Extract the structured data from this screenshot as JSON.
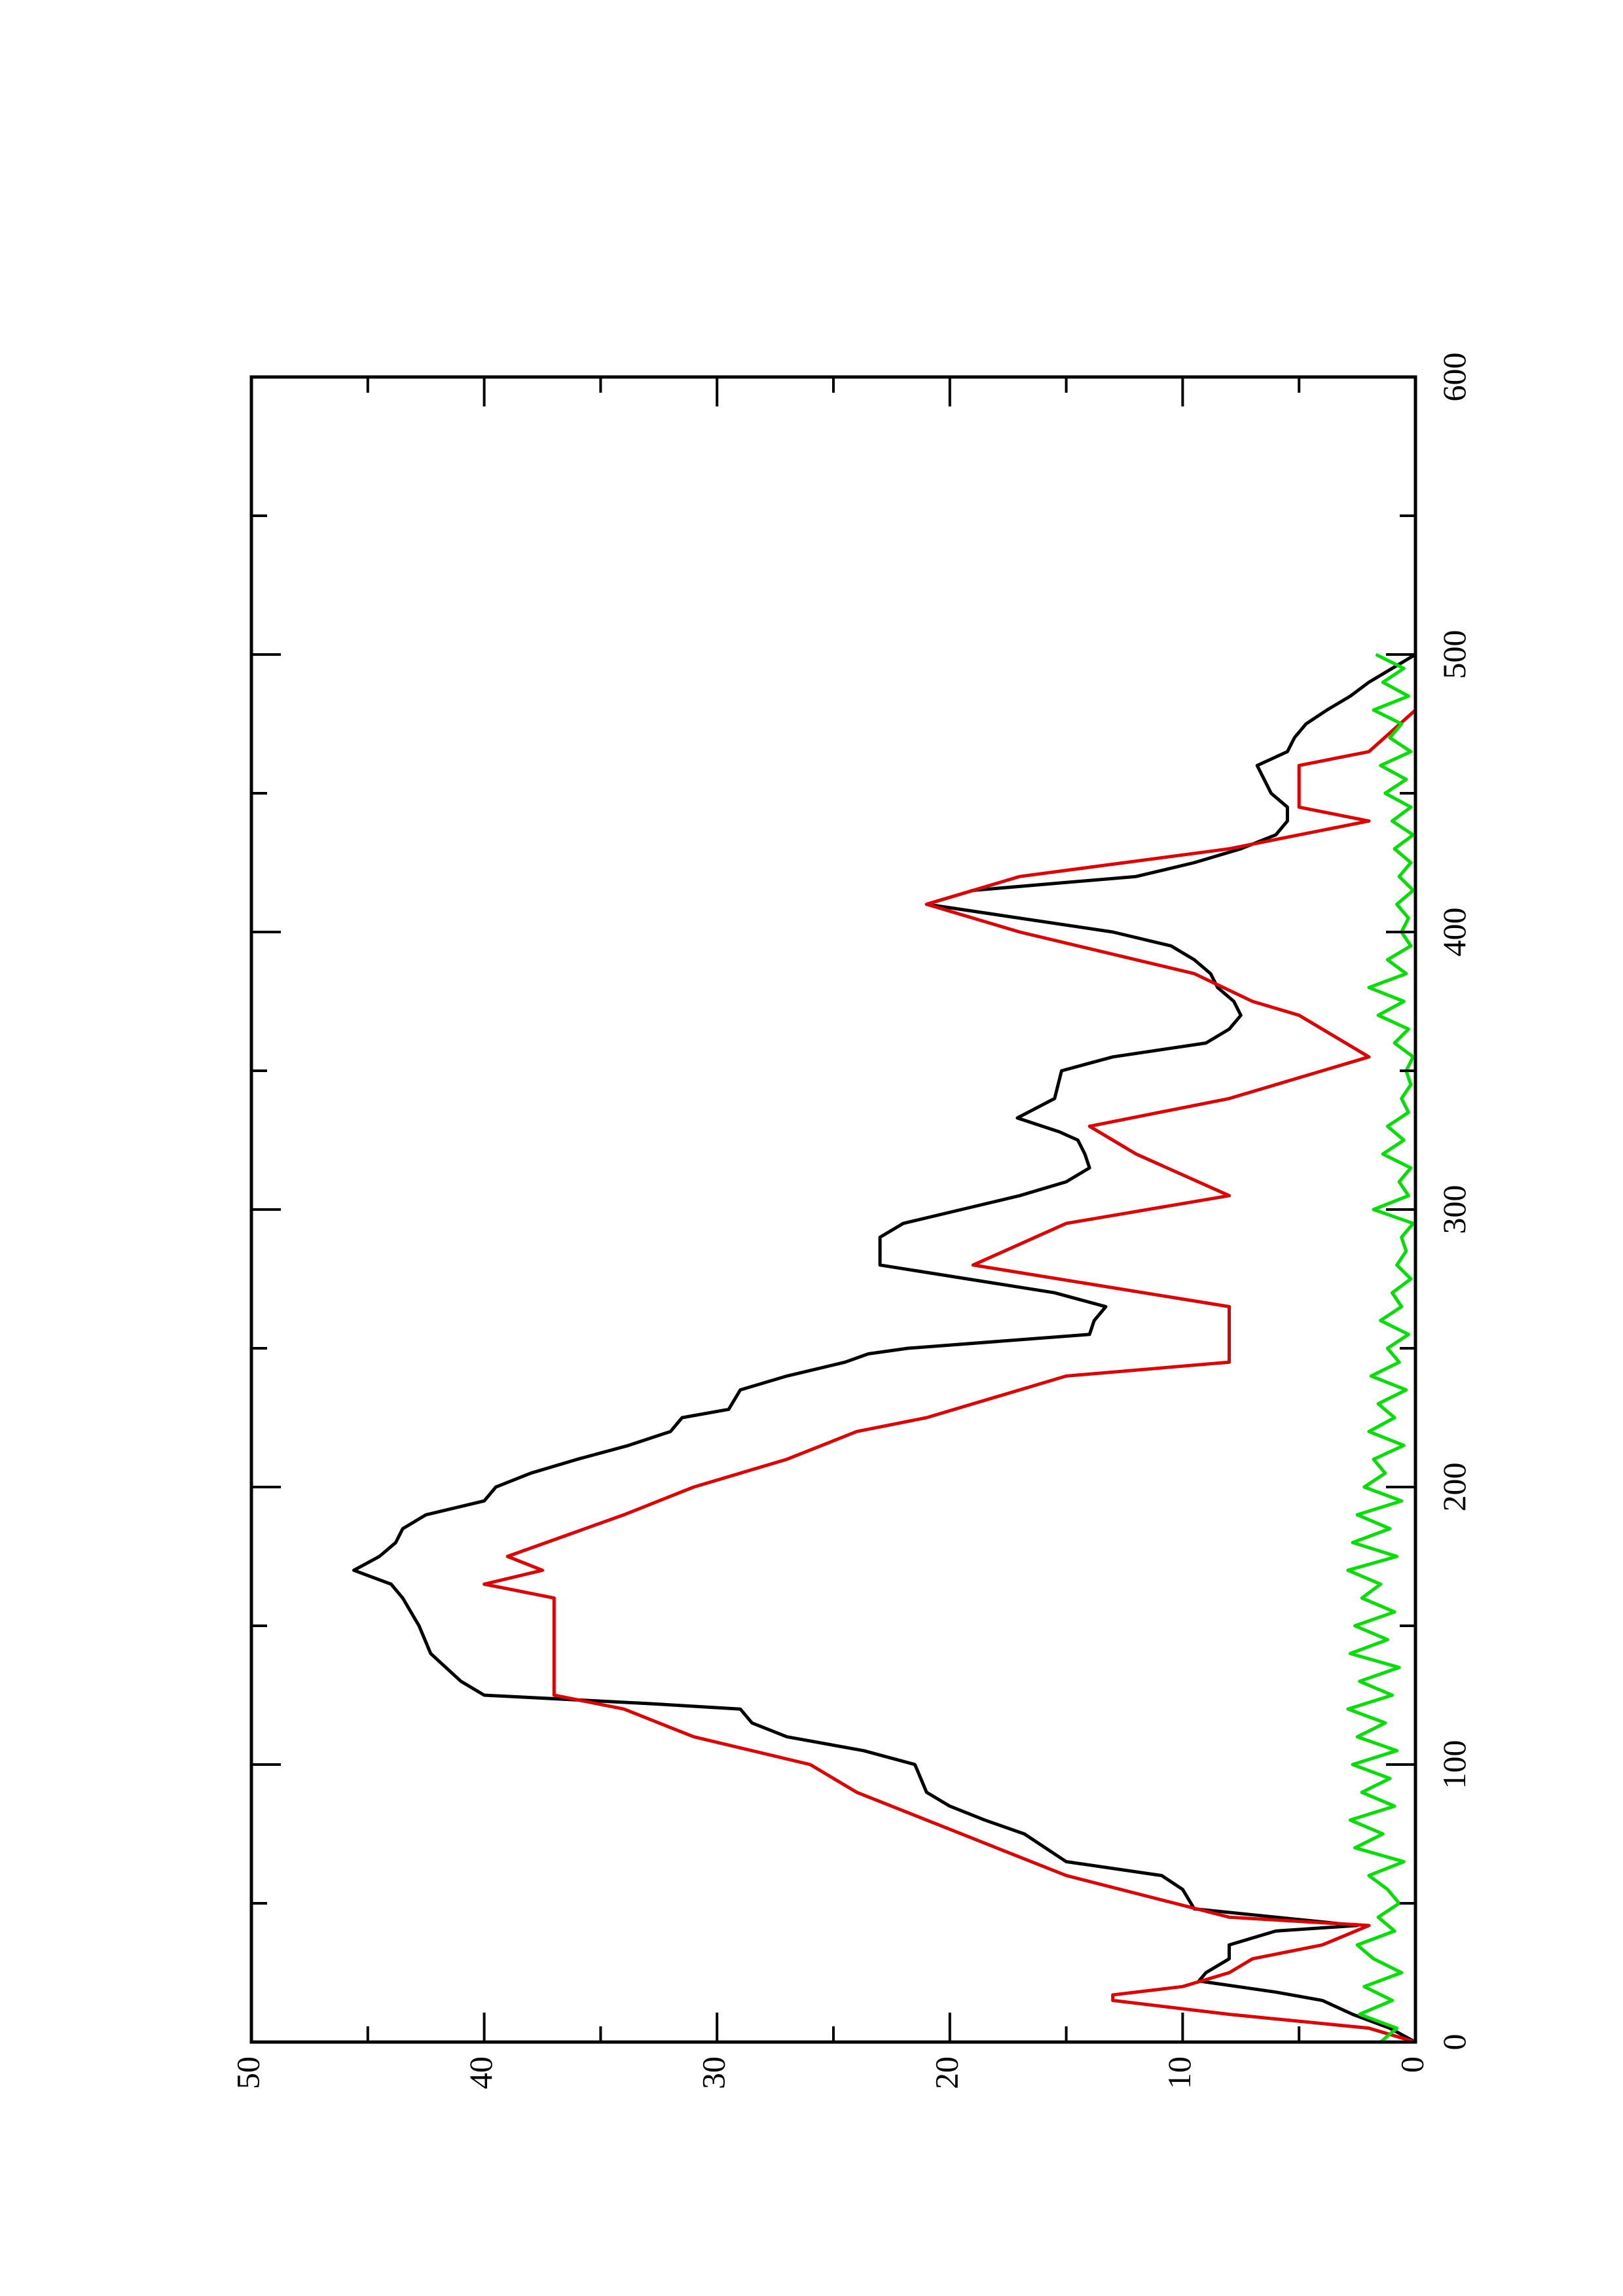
{
  "chart_data": {
    "type": "line",
    "xlim": [
      0,
      600
    ],
    "xticks": [
      0,
      100,
      200,
      300,
      400,
      500,
      600
    ],
    "xminor": [
      50,
      150,
      250,
      350,
      450,
      550
    ],
    "ylim": [
      0,
      50
    ],
    "yticks": [
      0,
      10,
      20,
      30,
      40,
      50
    ],
    "yminor": [
      5,
      15,
      25,
      35,
      45
    ],
    "series": [
      {
        "color": "#000000",
        "x": [
          0,
          5,
          10,
          15,
          18,
          22,
          25,
          30,
          35,
          40,
          42,
          45,
          48,
          55,
          60,
          65,
          75,
          80,
          85,
          90,
          100,
          105,
          110,
          115,
          120,
          122,
          125,
          130,
          140,
          150,
          160,
          165,
          170,
          175,
          180,
          185,
          190,
          195,
          200,
          205,
          210,
          215,
          220,
          225,
          228,
          235,
          240,
          245,
          248,
          250,
          255,
          260,
          265,
          270,
          280,
          290,
          295,
          300,
          305,
          310,
          315,
          320,
          325,
          328,
          333,
          340,
          350,
          355,
          360,
          365,
          370,
          375,
          380,
          385,
          390,
          395,
          400,
          410,
          415,
          420,
          425,
          430,
          435,
          440,
          445,
          450,
          455,
          460,
          465,
          470,
          475,
          480,
          485,
          490,
          495,
          500
        ],
        "values": [
          0,
          1.1,
          2.7,
          4,
          6,
          9.3,
          9,
          8,
          8,
          6,
          2.5,
          6,
          9.5,
          10,
          10.9,
          15,
          16.8,
          18.5,
          20,
          21,
          21.5,
          23.7,
          27,
          28.5,
          29,
          33,
          40,
          41,
          42.3,
          42.8,
          43.5,
          44,
          45.6,
          44.5,
          43.8,
          43.5,
          42.5,
          40,
          39.5,
          38,
          36,
          33.8,
          32,
          31.5,
          29.5,
          29,
          27,
          24.5,
          23.5,
          21.8,
          14,
          13.8,
          13.3,
          15.5,
          23,
          23,
          22,
          19.5,
          17,
          15,
          14,
          14.2,
          14.5,
          15.3,
          17.1,
          15.5,
          15.2,
          13,
          9,
          8,
          7.5,
          7.8,
          8.5,
          8.8,
          9.5,
          10.5,
          13,
          21,
          19,
          12,
          9.5,
          7.5,
          6,
          5.5,
          5.5,
          6.2,
          6.5,
          6.8,
          5.5,
          5.2,
          4.7,
          3.8,
          2.8,
          2,
          1,
          0
        ]
      },
      {
        "color": "#e00000",
        "x": [
          0,
          5,
          10,
          15,
          17,
          20,
          25,
          30,
          35,
          42,
          45,
          60,
          70,
          80,
          90,
          100,
          110,
          120,
          125,
          160,
          165,
          170,
          175,
          190,
          200,
          210,
          220,
          225,
          240,
          245,
          265,
          280,
          295,
          305,
          320,
          330,
          340,
          355,
          370,
          375,
          385,
          400,
          410,
          420,
          430,
          435,
          440,
          445,
          460,
          465,
          480
        ],
        "values": [
          0,
          2,
          8,
          13,
          13,
          10,
          8,
          7,
          4,
          2,
          8,
          15,
          18,
          21,
          24,
          26,
          31,
          34,
          37,
          37,
          40,
          37.5,
          39,
          34,
          31,
          27,
          24,
          21,
          15,
          8,
          8,
          19,
          15,
          8,
          12,
          14,
          8,
          2,
          5,
          7,
          9.5,
          17,
          21,
          17,
          8,
          5,
          2,
          5,
          5,
          2,
          0
        ]
      },
      {
        "color": "#00e000",
        "x": [
          0,
          5,
          10,
          15,
          20,
          25,
          30,
          35,
          40,
          45,
          50,
          55,
          60,
          65,
          70,
          75,
          80,
          85,
          90,
          95,
          100,
          105,
          110,
          115,
          120,
          125,
          130,
          135,
          140,
          145,
          150,
          155,
          160,
          165,
          170,
          175,
          180,
          185,
          190,
          195,
          200,
          205,
          210,
          215,
          220,
          225,
          230,
          235,
          240,
          245,
          250,
          255,
          260,
          265,
          270,
          275,
          280,
          285,
          290,
          295,
          300,
          305,
          310,
          315,
          320,
          325,
          330,
          335,
          340,
          345,
          350,
          355,
          360,
          365,
          370,
          375,
          380,
          385,
          390,
          395,
          400,
          405,
          410,
          415,
          420,
          425,
          430,
          435,
          440,
          445,
          450,
          455,
          460,
          465,
          470,
          475,
          480,
          485,
          490,
          495,
          500
        ],
        "values": [
          1.5,
          0.8,
          2.4,
          1,
          2.2,
          0.6,
          1.8,
          2.5,
          0.9,
          1.6,
          0.7,
          1.2,
          2,
          0.5,
          2.6,
          1.4,
          2.8,
          0.9,
          2.3,
          1.1,
          2.7,
          0.8,
          2.5,
          1.3,
          2.9,
          1,
          2.4,
          0.7,
          2.8,
          1.2,
          2.6,
          0.9,
          2.3,
          1.5,
          2.9,
          0.8,
          2.7,
          1.1,
          2.5,
          0.6,
          2.2,
          1.3,
          1.8,
          0.5,
          2,
          0.9,
          1.6,
          0.4,
          1.9,
          0.7,
          1.2,
          0.3,
          1.5,
          0.6,
          1,
          0.2,
          0.8,
          0.4,
          0.6,
          0.1,
          1.8,
          0.3,
          0.7,
          0.2,
          1.4,
          0.5,
          1.2,
          0.3,
          0.6,
          0.2,
          0.4,
          0.1,
          0.9,
          0.3,
          1.6,
          0.5,
          2,
          0.4,
          1.2,
          0.2,
          0.6,
          0.3,
          0.8,
          0.1,
          0.7,
          0.2,
          0.9,
          0.1,
          1,
          0.2,
          1.3,
          0.4,
          1.5,
          0.2,
          1.1,
          0.6,
          1.8,
          0.3,
          1.4,
          0.5,
          1.7
        ]
      }
    ]
  }
}
